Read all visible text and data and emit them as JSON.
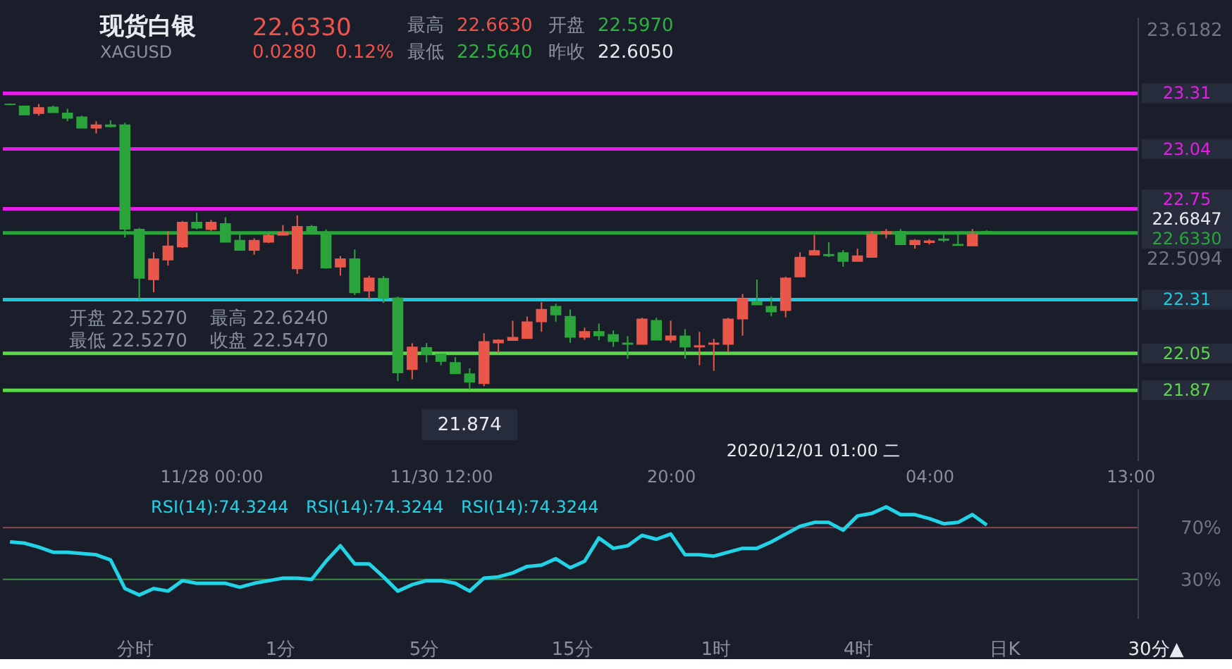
{
  "chart_data": [
    {
      "type": "candlestick",
      "title": "现货白银",
      "subtitle": "XAGUSD",
      "categories": [
        null,
        null,
        null,
        null,
        null,
        null,
        null,
        null,
        null,
        null,
        null,
        null,
        null,
        null,
        "11/28 00:00",
        null,
        null,
        null,
        null,
        null,
        null,
        null,
        null,
        null,
        null,
        null,
        null,
        null,
        null,
        null,
        "11/30 12:00",
        null,
        null,
        null,
        null,
        null,
        null,
        null,
        null,
        null,
        null,
        null,
        null,
        null,
        null,
        null,
        "20:00",
        null,
        null,
        null,
        null,
        null,
        null,
        null,
        null,
        null,
        null,
        null,
        null,
        null,
        null,
        null,
        null,
        null,
        "04:00",
        null,
        null,
        null,
        null,
        null,
        null,
        null,
        null,
        null,
        null,
        null,
        null,
        null,
        "13:00"
      ],
      "ohlc": [
        [
          23.257,
          23.26,
          23.252,
          23.255
        ],
        [
          23.247,
          23.247,
          23.206,
          23.206
        ],
        [
          23.213,
          23.258,
          23.201,
          23.24
        ],
        [
          23.242,
          23.25,
          23.217,
          23.217
        ],
        [
          23.213,
          23.235,
          23.174,
          23.19
        ],
        [
          23.194,
          23.201,
          23.142,
          23.142
        ],
        [
          23.142,
          23.174,
          23.115,
          23.156
        ],
        [
          23.156,
          23.179,
          23.145,
          23.149
        ],
        [
          23.156,
          23.167,
          22.611,
          22.652
        ],
        [
          22.65,
          22.657,
          22.31,
          22.414
        ],
        [
          22.407,
          22.539,
          22.346,
          22.507
        ],
        [
          22.503,
          22.641,
          22.475,
          22.569
        ],
        [
          22.566,
          22.691,
          22.56,
          22.684
        ],
        [
          22.684,
          22.732,
          22.65,
          22.657
        ],
        [
          22.65,
          22.696,
          22.643,
          22.684
        ],
        [
          22.677,
          22.709,
          22.589,
          22.589
        ],
        [
          22.596,
          22.637,
          22.55,
          22.55
        ],
        [
          22.55,
          22.607,
          22.528,
          22.596
        ],
        [
          22.589,
          22.63,
          22.584,
          22.621
        ],
        [
          22.623,
          22.671,
          22.623,
          22.635
        ],
        [
          22.46,
          22.718,
          22.435,
          22.664
        ],
        [
          22.664,
          22.671,
          22.628,
          22.628
        ],
        [
          22.623,
          22.65,
          22.46,
          22.464
        ],
        [
          22.469,
          22.521,
          22.426,
          22.507
        ],
        [
          22.507,
          22.553,
          22.332,
          22.344
        ],
        [
          22.353,
          22.426,
          22.31,
          22.414
        ],
        [
          22.412,
          22.424,
          22.294,
          22.317
        ],
        [
          22.317,
          22.324,
          21.915,
          21.956
        ],
        [
          21.972,
          22.099,
          21.924,
          22.079
        ],
        [
          22.077,
          22.099,
          22.006,
          22.045
        ],
        [
          22.045,
          22.045,
          21.992,
          22.011
        ],
        [
          22.004,
          22.031,
          21.952,
          21.952
        ],
        [
          21.95,
          21.977,
          21.874,
          21.911
        ],
        [
          21.904,
          22.147,
          21.89,
          22.106
        ],
        [
          22.101,
          22.118,
          22.052,
          22.113
        ],
        [
          22.113,
          22.208,
          22.113,
          22.126
        ],
        [
          22.122,
          22.228,
          22.122,
          22.201
        ],
        [
          22.203,
          22.298,
          22.154,
          22.262
        ],
        [
          22.276,
          22.29,
          22.203,
          22.237
        ],
        [
          22.228,
          22.262,
          22.101,
          22.128
        ],
        [
          22.128,
          22.174,
          22.115,
          22.154
        ],
        [
          22.154,
          22.194,
          22.113,
          22.135
        ],
        [
          22.14,
          22.16,
          22.081,
          22.108
        ],
        [
          22.099,
          22.133,
          22.024,
          22.094
        ],
        [
          22.094,
          22.222,
          22.094,
          22.215
        ],
        [
          22.208,
          22.222,
          22.115,
          22.115
        ],
        [
          22.115,
          22.208,
          22.101,
          22.133
        ],
        [
          22.133,
          22.167,
          22.024,
          22.081
        ],
        [
          22.081,
          22.154,
          21.992,
          22.086
        ],
        [
          22.094,
          22.12,
          21.965,
          22.099
        ],
        [
          22.094,
          22.222,
          22.054,
          22.215
        ],
        [
          22.217,
          22.337,
          22.135,
          22.312
        ],
        [
          22.298,
          22.407,
          22.285,
          22.285
        ],
        [
          22.276,
          22.324,
          22.23,
          22.251
        ],
        [
          22.258,
          22.421,
          22.224,
          22.414
        ],
        [
          22.421,
          22.539,
          22.421,
          22.514
        ],
        [
          22.527,
          22.624,
          22.527,
          22.547
        ],
        [
          22.528,
          22.589,
          22.516,
          22.523
        ],
        [
          22.537,
          22.55,
          22.469,
          22.496
        ],
        [
          22.496,
          22.557,
          22.496,
          22.521
        ],
        [
          22.516,
          22.643,
          22.516,
          22.625
        ],
        [
          22.63,
          22.652,
          22.607,
          22.639
        ],
        [
          22.639,
          22.652,
          22.577,
          22.577
        ],
        [
          22.577,
          22.603,
          22.557,
          22.596
        ],
        [
          22.587,
          22.603,
          22.577,
          22.594
        ],
        [
          22.603,
          22.625,
          22.589,
          22.598
        ],
        [
          22.577,
          22.625,
          22.573,
          22.573
        ],
        [
          22.571,
          22.652,
          22.571,
          22.625
        ],
        [
          22.64,
          22.645,
          22.63,
          22.633
        ],
        null,
        null,
        null,
        null,
        null,
        null,
        null,
        null,
        null,
        null
      ],
      "colors": [
        "#2ba53b",
        "#2ba53b",
        "#e9574b",
        "#2ba53b",
        "#2ba53b",
        "#2ba53b",
        "#e9574b",
        "#2ba53b",
        "#2ba53b",
        "#2ba53b",
        "#e9574b",
        "#e9574b",
        "#e9574b",
        "#2ba53b",
        "#e9574b",
        "#2ba53b",
        "#2ba53b",
        "#e9574b",
        "#e9574b",
        "#e9574b",
        "#e9574b",
        "#2ba53b",
        "#2ba53b",
        "#e9574b",
        "#2ba53b",
        "#e9574b",
        "#2ba53b",
        "#2ba53b",
        "#e9574b",
        "#2ba53b",
        "#2ba53b",
        "#2ba53b",
        "#2ba53b",
        "#e9574b",
        "#e9574b",
        "#e9574b",
        "#e9574b",
        "#e9574b",
        "#2ba53b",
        "#2ba53b",
        "#e9574b",
        "#2ba53b",
        "#2ba53b",
        "#2ba53b",
        "#e9574b",
        "#2ba53b",
        "#e9574b",
        "#2ba53b",
        "#e9574b",
        "#e9574b",
        "#e9574b",
        "#e9574b",
        "#2ba53b",
        "#2ba53b",
        "#e9574b",
        "#e9574b",
        "#e9574b",
        "#2ba53b",
        "#2ba53b",
        "#e9574b",
        "#e9574b",
        "#e9574b",
        "#2ba53b",
        "#e9574b",
        "#e9574b",
        "#2ba53b",
        "#2ba53b",
        "#e9574b",
        "#2ba53b",
        null,
        null,
        null,
        null,
        null,
        null,
        null,
        null,
        null,
        null
      ],
      "ylim": [
        21.53,
        23.68
      ],
      "yticks": [
        23.6182,
        22.5094
      ],
      "ref_lines": [
        {
          "axis": "y",
          "value": 23.31,
          "label": "23.31",
          "color": "#e41ee6"
        },
        {
          "axis": "y",
          "value": 23.04,
          "label": "23.04",
          "color": "#e41ee6"
        },
        {
          "axis": "y",
          "value": 22.75,
          "label": "22.75",
          "color": "#e41ee6"
        },
        {
          "axis": "y",
          "value": 22.31,
          "label": "22.31",
          "color": "#1ec8dc"
        },
        {
          "axis": "y",
          "value": 22.05,
          "label": "22.05",
          "color": "#5ad846"
        },
        {
          "axis": "y",
          "value": 21.87,
          "label": "21.87",
          "color": "#5ad846"
        },
        {
          "axis": "y",
          "value": 22.633,
          "label": "22.6330",
          "color": "#2ba53b"
        }
      ],
      "annotations": [
        "22.6330",
        "0.0280",
        "0.12%",
        "最高",
        "22.6630",
        "开盘",
        "22.5970",
        "最低",
        "22.5640",
        "昨收",
        "22.6050",
        "开盘 22.5270",
        "最高 22.6240",
        "最低 22.5270",
        "收盘 22.5470",
        "2020/12/01 01:00 二",
        "22.6847",
        {
          "text": "21.874",
          "y": 21.874
        }
      ]
    },
    {
      "type": "line",
      "categories": [
        null,
        null,
        null,
        null,
        null,
        null,
        null,
        null,
        null,
        null,
        null,
        null,
        null,
        null,
        null,
        null,
        null,
        null,
        null,
        null,
        null,
        null,
        null,
        null,
        null,
        null,
        null,
        null,
        null,
        null,
        null,
        null,
        null,
        null,
        null,
        null,
        null,
        null,
        null,
        null,
        null,
        null,
        null,
        null,
        null,
        null,
        null,
        null,
        null,
        null,
        null,
        null,
        null,
        null,
        null,
        null,
        null,
        null,
        null,
        null,
        null,
        null,
        null,
        null,
        null,
        null,
        null,
        null,
        null,
        null,
        null,
        null,
        null,
        null,
        null,
        null,
        null,
        null,
        null
      ],
      "tick_labels": "y",
      "series": [
        {
          "name": "RSI(14):74.3244",
          "color": "#22d3e6",
          "values": [
            59,
            58,
            55,
            51,
            51,
            50,
            49,
            45,
            23,
            18,
            23,
            21,
            29,
            27,
            27,
            27,
            24,
            27,
            29,
            31,
            31,
            30,
            44,
            56,
            42,
            42,
            32,
            21,
            26,
            29,
            29,
            27,
            21,
            31,
            32,
            35,
            40,
            41,
            46,
            39,
            44,
            62,
            54,
            56,
            64,
            61,
            65,
            49,
            49,
            48,
            51,
            54,
            54,
            59,
            65,
            71,
            74,
            74,
            68,
            79,
            81,
            86,
            80,
            80,
            77,
            73,
            74,
            80,
            72,
            null,
            null,
            null,
            null,
            null,
            null,
            null,
            null,
            null,
            null
          ]
        }
      ],
      "ylim": [
        0,
        100
      ],
      "yticks": [
        {
          "value": 70,
          "label": "70%"
        },
        {
          "value": 30,
          "label": "30%"
        }
      ],
      "ref_lines": [
        {
          "axis": "y",
          "value": 70,
          "color": "#8c4a52"
        },
        {
          "axis": "y",
          "value": 30,
          "color": "#3e8a45"
        }
      ],
      "legend": "top left",
      "annotations": [
        "RSI(14):74.3244",
        "RSI(14):74.3244",
        "分时",
        "1分",
        "5分",
        "15分",
        "1时",
        "4时",
        "日K",
        "30分▲"
      ]
    }
  ]
}
